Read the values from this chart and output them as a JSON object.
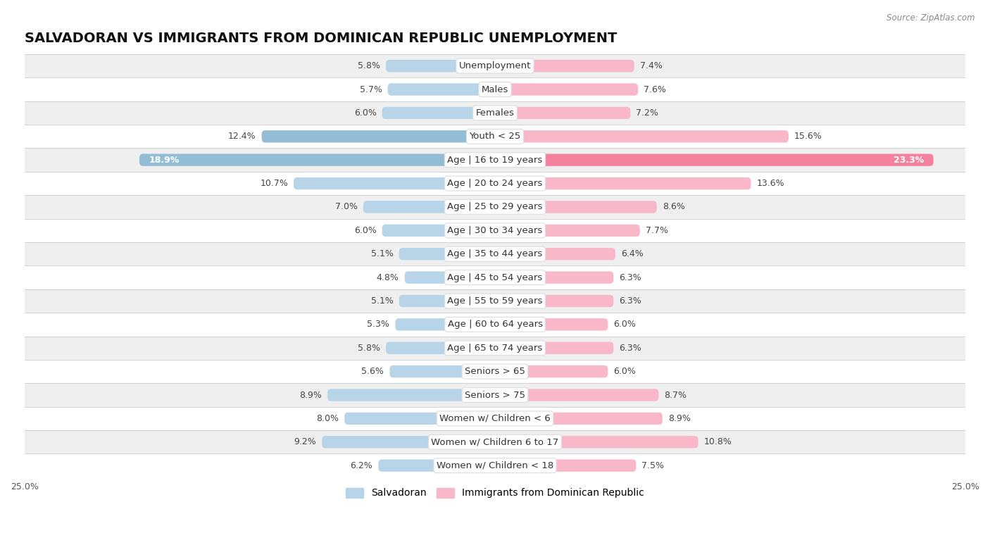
{
  "title": "SALVADORAN VS IMMIGRANTS FROM DOMINICAN REPUBLIC UNEMPLOYMENT",
  "source": "Source: ZipAtlas.com",
  "categories": [
    "Unemployment",
    "Males",
    "Females",
    "Youth < 25",
    "Age | 16 to 19 years",
    "Age | 20 to 24 years",
    "Age | 25 to 29 years",
    "Age | 30 to 34 years",
    "Age | 35 to 44 years",
    "Age | 45 to 54 years",
    "Age | 55 to 59 years",
    "Age | 60 to 64 years",
    "Age | 65 to 74 years",
    "Seniors > 65",
    "Seniors > 75",
    "Women w/ Children < 6",
    "Women w/ Children 6 to 17",
    "Women w/ Children < 18"
  ],
  "salvadoran": [
    5.8,
    5.7,
    6.0,
    12.4,
    18.9,
    10.7,
    7.0,
    6.0,
    5.1,
    4.8,
    5.1,
    5.3,
    5.8,
    5.6,
    8.9,
    8.0,
    9.2,
    6.2
  ],
  "dominican": [
    7.4,
    7.6,
    7.2,
    15.6,
    23.3,
    13.6,
    8.6,
    7.7,
    6.4,
    6.3,
    6.3,
    6.0,
    6.3,
    6.0,
    8.7,
    8.9,
    10.8,
    7.5
  ],
  "salvadoran_color": "#92bdd4",
  "dominican_color": "#f4829e",
  "salvadoran_color_light": "#b8d4e8",
  "dominican_color_light": "#f8b8ca",
  "row_color_odd": "#efefef",
  "row_color_even": "#ffffff",
  "bar_height": 0.52,
  "xlim": 25.0,
  "legend_labels": [
    "Salvadoran",
    "Immigrants from Dominican Republic"
  ],
  "title_fontsize": 14,
  "label_fontsize": 9.5,
  "value_fontsize": 9
}
